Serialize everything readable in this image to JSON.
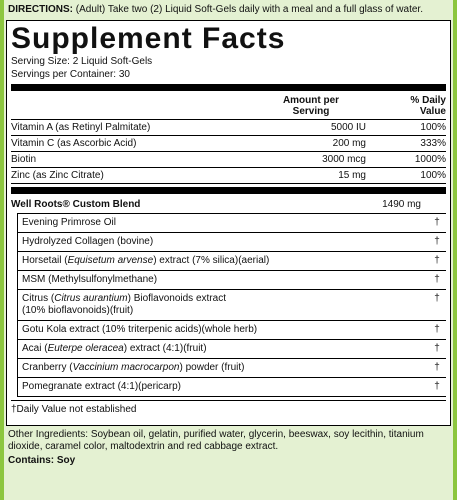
{
  "directions": {
    "label": "DIRECTIONS:",
    "text": "(Adult) Take two (2) Liquid Soft-Gels daily with a meal and a full glass of water."
  },
  "panel": {
    "title": "Supplement Facts",
    "serving_size": "Serving Size:  2 Liquid Soft-Gels",
    "servings_per_container": "Servings per Container:  30",
    "columns": [
      "Amount per\nServing",
      "% Daily\nValue"
    ],
    "rows": [
      [
        "Vitamin A (as Retinyl Palmitate)",
        "5000 IU",
        "100%"
      ],
      [
        "Vitamin C (as Ascorbic Acid)",
        "200 mg",
        "333%"
      ],
      [
        "Biotin",
        "3000 mcg",
        "1000%"
      ],
      [
        "Zinc (as Zinc Citrate)",
        "15 mg",
        "100%"
      ]
    ],
    "blend": {
      "name": "Well Roots® Custom Blend",
      "amount": "1490 mg",
      "ingredients": [
        {
          "name": [
            "Evening Primrose Oil"
          ],
          "dv": "†"
        },
        {
          "name": [
            "Hydrolyzed Collagen (bovine)"
          ],
          "dv": "†"
        },
        {
          "name": [
            "Horsetail (",
            "Equisetum arvense",
            ") extract (7% silica)(aerial)"
          ],
          "dv": "†"
        },
        {
          "name": [
            "MSM (Methylsulfonylmethane)"
          ],
          "dv": "†"
        },
        {
          "name": [
            "Citrus (",
            "Citrus aurantium",
            ") Bioflavonoids extract\n(10% bioflavonoids)(fruit)"
          ],
          "dv": "†"
        },
        {
          "name": [
            "Gotu Kola extract (10% triterpenic acids)(whole herb)"
          ],
          "dv": "†"
        },
        {
          "name": [
            "Acai (",
            "Euterpe oleracea",
            ") extract (4:1)(fruit)"
          ],
          "dv": "†"
        },
        {
          "name": [
            "Cranberry (",
            "Vaccinium macrocarpon",
            ") powder (fruit)"
          ],
          "dv": "†"
        },
        {
          "name": [
            "Pomegranate extract (4:1)(pericarp)"
          ],
          "dv": "†"
        }
      ]
    },
    "footnote": "†Daily Value not established"
  },
  "other_ingredients": "Other Ingredients:  Soybean oil, gelatin, purified water, glycerin, beeswax, soy lecithin, titanium dioxide, caramel color, maltodextrin and red cabbage extract.",
  "contains": "Contains: Soy"
}
